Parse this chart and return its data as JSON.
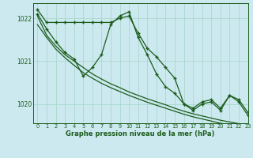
{
  "title": "Graphe pression niveau de la mer (hPa)",
  "bg_color": "#cde9f0",
  "grid_color": "#a8d8cc",
  "line_color": "#1a5c1a",
  "xlim": [
    -0.5,
    23
  ],
  "ylim": [
    1019.55,
    1022.35
  ],
  "yticks": [
    1020,
    1021,
    1022
  ],
  "xticks": [
    0,
    1,
    2,
    3,
    4,
    5,
    6,
    7,
    8,
    9,
    10,
    11,
    12,
    13,
    14,
    15,
    16,
    17,
    18,
    19,
    20,
    21,
    22,
    23
  ],
  "series_with_markers": [
    [
      1022.2,
      1021.9,
      1021.9,
      1021.9,
      1021.9,
      1021.9,
      1021.9,
      1021.9,
      1021.9,
      1022.0,
      1022.05,
      1021.65,
      1021.3,
      1021.1,
      1020.85,
      1020.6,
      1020.0,
      1019.9,
      1020.05,
      1020.1,
      1019.9,
      1020.2,
      1020.1,
      1019.8
    ],
    [
      1022.1,
      1021.75,
      1021.45,
      1021.2,
      1021.05,
      1020.65,
      1020.85,
      1021.15,
      1021.85,
      1022.05,
      1022.15,
      1021.55,
      1021.15,
      1020.7,
      1020.4,
      1020.25,
      1020.0,
      1019.85,
      1020.0,
      1020.05,
      1019.85,
      1020.2,
      1020.05,
      1019.73
    ]
  ],
  "series_lines_only": [
    [
      1022.05,
      1021.6,
      1021.35,
      1021.15,
      1021.0,
      1020.85,
      1020.7,
      1020.58,
      1020.47,
      1020.38,
      1020.28,
      1020.2,
      1020.12,
      1020.05,
      1019.98,
      1019.9,
      1019.83,
      1019.77,
      1019.72,
      1019.67,
      1019.62,
      1019.58,
      1019.54,
      1019.5
    ],
    [
      1021.85,
      1021.55,
      1021.28,
      1021.08,
      1020.9,
      1020.73,
      1020.6,
      1020.48,
      1020.38,
      1020.29,
      1020.2,
      1020.12,
      1020.04,
      1019.97,
      1019.9,
      1019.83,
      1019.76,
      1019.7,
      1019.65,
      1019.6,
      1019.55,
      1019.52,
      1019.48,
      1019.45
    ]
  ]
}
